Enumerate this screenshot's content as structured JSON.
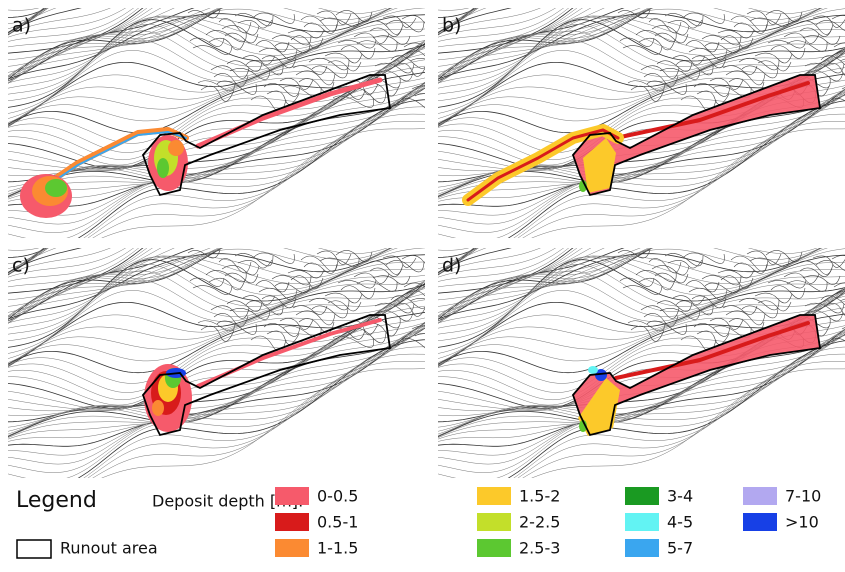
{
  "panels": [
    {
      "label": "a)"
    },
    {
      "label": "b)"
    },
    {
      "label": "c)"
    },
    {
      "label": "d)"
    }
  ],
  "legend": {
    "title": "Legend",
    "runout": "Runout area",
    "depth_label": "Deposit depth [m]:",
    "classes": [
      {
        "label": "0-0.5",
        "color": "#f65a6b"
      },
      {
        "label": "0.5-1",
        "color": "#d81b1b"
      },
      {
        "label": "1-1.5",
        "color": "#fb8a32"
      },
      {
        "label": "1.5-2",
        "color": "#fcc92a"
      },
      {
        "label": "2-2.5",
        "color": "#c3df2a"
      },
      {
        "label": "2.5-3",
        "color": "#5cc831"
      },
      {
        "label": "3-4",
        "color": "#1a9a22"
      },
      {
        "label": "4-5",
        "color": "#62f3f3"
      },
      {
        "label": "5-7",
        "color": "#3aa6ef"
      },
      {
        "label": "7-10",
        "color": "#b2a8f0"
      },
      {
        "label": ">10",
        "color": "#1740e6"
      }
    ]
  }
}
